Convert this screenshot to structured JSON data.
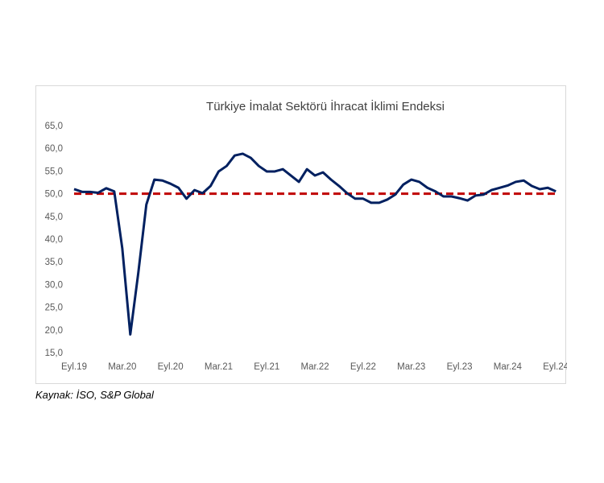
{
  "chart_data": {
    "type": "line",
    "title": "Türkiye İmalat Sektörü İhracat İklimi Endeksi",
    "xlabel": "",
    "ylabel": "",
    "ylim": [
      15,
      65
    ],
    "yticks": [
      "15,0",
      "20,0",
      "25,0",
      "30,0",
      "35,0",
      "40,0",
      "45,0",
      "50,0",
      "55,0",
      "60,0",
      "65,0"
    ],
    "xtick_labels": [
      "Eyl.19",
      "Mar.20",
      "Eyl.20",
      "Mar.21",
      "Eyl.21",
      "Mar.22",
      "Eyl.22",
      "Mar.23",
      "Eyl.23",
      "Mar.24",
      "Eyl.24"
    ],
    "x_start": "Eyl.19",
    "x_frequency": "monthly",
    "grid": false,
    "series": [
      {
        "color": "#002060",
        "style": "solid",
        "values": [
          51.0,
          50.4,
          50.4,
          50.2,
          51.2,
          50.5,
          38.0,
          19.0,
          32.6,
          47.6,
          53.1,
          52.9,
          52.2,
          51.3,
          48.9,
          50.8,
          50.1,
          51.7,
          54.9,
          56.1,
          58.4,
          58.8,
          57.9,
          56.1,
          54.9,
          54.9,
          55.4,
          54.0,
          52.6,
          55.4,
          54.0,
          54.7,
          53.1,
          51.7,
          50.1,
          48.9,
          48.9,
          48.0,
          48.0,
          48.7,
          49.8,
          52.0,
          53.1,
          52.6,
          51.3,
          50.5,
          49.4,
          49.4,
          49.0,
          48.5,
          49.6,
          49.8,
          50.8,
          51.3,
          51.8,
          52.6,
          52.9,
          51.7,
          51.0,
          51.3,
          50.5
        ]
      },
      {
        "color": "#c00000",
        "style": "dashed",
        "constant": 50
      }
    ]
  },
  "source": "Kaynak: İSO, S&P Global"
}
